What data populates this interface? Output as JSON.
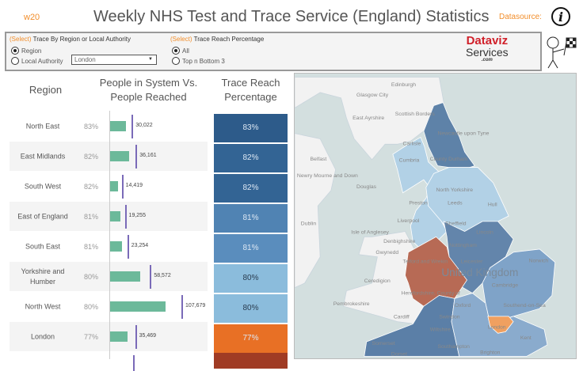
{
  "header": {
    "week": "w20",
    "title": "Weekly NHS Test and Trace Service (England) Statistics",
    "datasource_label": "Datasource:",
    "info_icon": "info-icon"
  },
  "filters": {
    "trace_by": {
      "select_prefix": "(Select)",
      "label": "Trace By Region or Local Authority",
      "options": [
        "Region",
        "Local Authority"
      ],
      "selected": "Region",
      "dropdown_value": "London"
    },
    "reach": {
      "select_prefix": "(Select)",
      "label": "Trace Reach Percentage",
      "options": [
        "All",
        "Top n Bottom 3"
      ],
      "selected": "All"
    }
  },
  "logo": {
    "line1": "Dataviz",
    "line2": "Services",
    "line3": ".com"
  },
  "columns": {
    "region": "Region",
    "people": "People in System Vs. People Reached",
    "reach": "Trace Reach Percentage"
  },
  "colors": {
    "bar": "#6cb99a",
    "tick": "#7a6ab8",
    "orange": "#e87025"
  },
  "rows": [
    {
      "region": "North East",
      "pct": "83%",
      "reach": 0.83,
      "total": 30022,
      "total_label": "30,022",
      "color": "#2d5b8a"
    },
    {
      "region": "East Midlands",
      "pct": "82%",
      "reach": 0.82,
      "total": 36161,
      "total_label": "36,161",
      "color": "#336494"
    },
    {
      "region": "South West",
      "pct": "82%",
      "reach": 0.82,
      "total": 14419,
      "total_label": "14,419",
      "color": "#336494"
    },
    {
      "region": "East of England",
      "pct": "81%",
      "reach": 0.81,
      "total": 19255,
      "total_label": "19,255",
      "color": "#5083b3"
    },
    {
      "region": "South East",
      "pct": "81%",
      "reach": 0.81,
      "total": 23254,
      "total_label": "23,254",
      "color": "#5a8dbd"
    },
    {
      "region": "Yorkshire and Humber",
      "pct": "80%",
      "reach": 0.8,
      "total": 58572,
      "total_label": "58,572",
      "color": "#8bbcdc"
    },
    {
      "region": "North West",
      "pct": "80%",
      "reach": 0.8,
      "total": 107679,
      "total_label": "107,679",
      "color": "#8bbcdc"
    },
    {
      "region": "London",
      "pct": "77%",
      "reach": 0.77,
      "total": 35469,
      "total_label": "35,469",
      "color": "#e87025"
    }
  ],
  "partial_row_color": "#a03b24",
  "map": {
    "labels": [
      "Edinburgh",
      "Scottish Borders",
      "East Ayrshire",
      "Glasgow City",
      "Newcastle upon Tyne",
      "Carlisle",
      "Cumbria",
      "County Durham",
      "Belfast",
      "Newry Mourne and Down",
      "Douglas",
      "North Yorkshire",
      "Preston",
      "Leeds",
      "Hull",
      "Dublin",
      "Liverpool",
      "Sheffield",
      "Lincoln",
      "Isle of Anglesey",
      "Denbighshire",
      "Nottingham",
      "Gwynedd",
      "Telford and Wrekin",
      "Leicester",
      "Norwich",
      "United Kingdom",
      "Cambridge",
      "Ceredigion",
      "Herefordshire, County of",
      "Pembrokeshire",
      "Oxford",
      "Southend-on-Sea",
      "Cardiff",
      "Swindon",
      "London",
      "Wiltshire",
      "Kent",
      "Somerset",
      "Southampton",
      "Brighton",
      "Dorset"
    ]
  }
}
